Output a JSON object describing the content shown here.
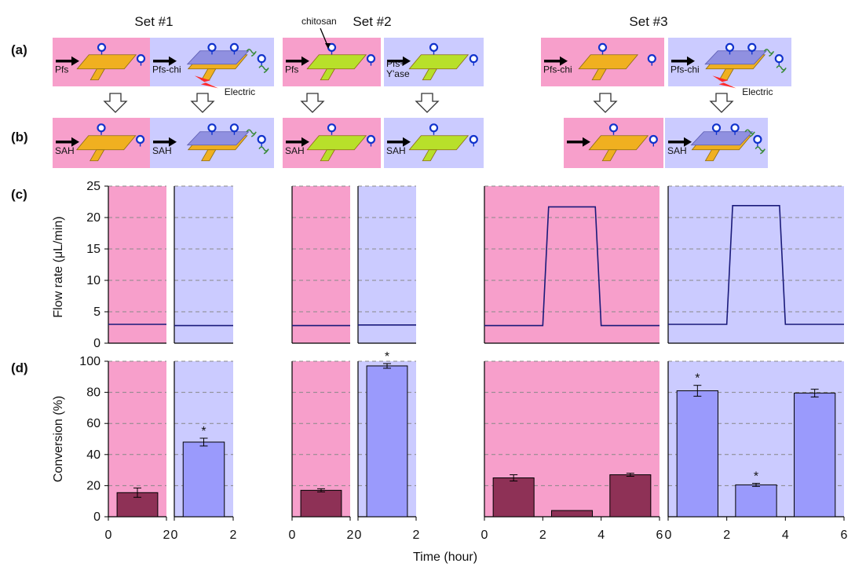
{
  "sets": [
    "Set #1",
    "Set #2",
    "Set #3"
  ],
  "row_labels": [
    "(a)",
    "(b)",
    "(c)",
    "(d)"
  ],
  "annotations": {
    "chitosan": "chitosan",
    "electric": "Electric",
    "significance_marker": "*"
  },
  "schematic_a": [
    {
      "label": "Pfs",
      "electric": false,
      "coated": false,
      "surface": "gold",
      "bg": "pink"
    },
    {
      "label": "Pfs-chi",
      "electric": true,
      "coated": true,
      "surface": "gold",
      "bg": "blue"
    },
    {
      "label": "Pfs",
      "electric": false,
      "coated": false,
      "surface": "green",
      "bg": "pink"
    },
    {
      "label": "Pfs+\nY'ase",
      "electric": false,
      "coated": false,
      "surface": "green",
      "bg": "blue"
    },
    {
      "label": "Pfs-chi",
      "electric": false,
      "coated": false,
      "surface": "gold",
      "bg": "pink"
    },
    {
      "label": "Pfs-chi",
      "electric": true,
      "coated": true,
      "surface": "gold",
      "bg": "blue"
    }
  ],
  "schematic_b": [
    {
      "label": "SAH",
      "coated": false,
      "surface": "gold",
      "bg": "pink"
    },
    {
      "label": "SAH",
      "coated": true,
      "surface": "gold",
      "bg": "blue"
    },
    {
      "label": "SAH",
      "coated": false,
      "surface": "green",
      "bg": "pink"
    },
    {
      "label": "SAH",
      "coated": false,
      "surface": "green",
      "bg": "blue"
    },
    {
      "label": "",
      "coated": false,
      "surface": "gold",
      "bg": "pink"
    },
    {
      "label": "SAH",
      "coated": true,
      "surface": "gold",
      "bg": "blue"
    }
  ],
  "colors": {
    "pink_bg": "#f79fcb",
    "blue_bg": "#cbcbff",
    "control_bar": "#8e3156",
    "treated_bar": "#9a9afc",
    "flow_line": "#1a1a7a",
    "gold": "#f0b020",
    "green": "#b8e02a",
    "film": "#9090e0",
    "arrow": "#000000",
    "spark": "#ff2a2a"
  },
  "chart_data": [
    {
      "type": "line",
      "ylabel": "Flow rate (μL/min)",
      "ylim": [
        0,
        25
      ],
      "yticks": [
        0,
        5,
        10,
        15,
        20,
        25
      ],
      "grid": true,
      "panels": [
        {
          "bg": "pink",
          "xlim": [
            0,
            2
          ],
          "x": [
            0,
            2
          ],
          "y": [
            3,
            3
          ]
        },
        {
          "bg": "blue",
          "xlim": [
            0,
            2
          ],
          "x": [
            0,
            2
          ],
          "y": [
            2.8,
            2.8
          ]
        },
        {
          "bg": "pink",
          "xlim": [
            0,
            2
          ],
          "x": [
            0,
            2
          ],
          "y": [
            2.8,
            2.8
          ]
        },
        {
          "bg": "blue",
          "xlim": [
            0,
            2
          ],
          "x": [
            0,
            2
          ],
          "y": [
            2.9,
            2.9
          ]
        },
        {
          "bg": "pink",
          "xlim": [
            0,
            6
          ],
          "x": [
            0,
            2,
            2.2,
            3.8,
            4,
            6
          ],
          "y": [
            2.8,
            2.8,
            21.7,
            21.7,
            2.8,
            2.8
          ]
        },
        {
          "bg": "blue",
          "xlim": [
            0,
            6
          ],
          "x": [
            0,
            2,
            2.2,
            3.8,
            4,
            6
          ],
          "y": [
            3,
            3,
            21.9,
            21.9,
            3,
            3
          ]
        }
      ]
    },
    {
      "type": "bar",
      "ylabel": "Conversion (%)",
      "xlabel": "Time (hour)",
      "ylim": [
        0,
        100
      ],
      "yticks": [
        0,
        20,
        40,
        60,
        80,
        100
      ],
      "grid": true,
      "panels": [
        {
          "bg": "pink",
          "xlim": [
            0,
            2
          ],
          "xticks": [
            "0",
            "2"
          ],
          "bars": [
            {
              "x0": 0.3,
              "x1": 1.7,
              "value": 15.5,
              "err": 3,
              "star": false,
              "color": "control"
            }
          ]
        },
        {
          "bg": "blue",
          "xlim": [
            0,
            2
          ],
          "xticks": [
            "0",
            "2"
          ],
          "bars": [
            {
              "x0": 0.3,
              "x1": 1.7,
              "value": 48,
              "err": 2.5,
              "star": true,
              "color": "treated"
            }
          ]
        },
        {
          "bg": "pink",
          "xlim": [
            0,
            2
          ],
          "xticks": [
            "0",
            "2"
          ],
          "bars": [
            {
              "x0": 0.3,
              "x1": 1.7,
              "value": 17,
              "err": 1,
              "star": false,
              "color": "control"
            }
          ]
        },
        {
          "bg": "blue",
          "xlim": [
            0,
            2
          ],
          "xticks": [
            "0",
            "2"
          ],
          "bars": [
            {
              "x0": 0.3,
              "x1": 1.7,
              "value": 97,
              "err": 1.5,
              "star": true,
              "color": "treated"
            }
          ]
        },
        {
          "bg": "pink",
          "xlim": [
            0,
            6
          ],
          "xticks": [
            "0",
            "2",
            "4",
            "6"
          ],
          "bars": [
            {
              "x0": 0.3,
              "x1": 1.7,
              "value": 25,
              "err": 2,
              "star": false,
              "color": "control"
            },
            {
              "x0": 2.3,
              "x1": 3.7,
              "value": 4,
              "err": 0,
              "star": false,
              "color": "control"
            },
            {
              "x0": 4.3,
              "x1": 5.7,
              "value": 27,
              "err": 1,
              "star": false,
              "color": "control"
            }
          ]
        },
        {
          "bg": "blue",
          "xlim": [
            0,
            6
          ],
          "xticks": [
            "0",
            "2",
            "4",
            "6"
          ],
          "bars": [
            {
              "x0": 0.3,
              "x1": 1.7,
              "value": 81,
              "err": 3.5,
              "star": true,
              "color": "treated"
            },
            {
              "x0": 2.3,
              "x1": 3.7,
              "value": 20.5,
              "err": 1,
              "star": true,
              "color": "treated"
            },
            {
              "x0": 4.3,
              "x1": 5.7,
              "value": 79.5,
              "err": 2.5,
              "star": false,
              "color": "treated"
            }
          ]
        }
      ]
    }
  ]
}
